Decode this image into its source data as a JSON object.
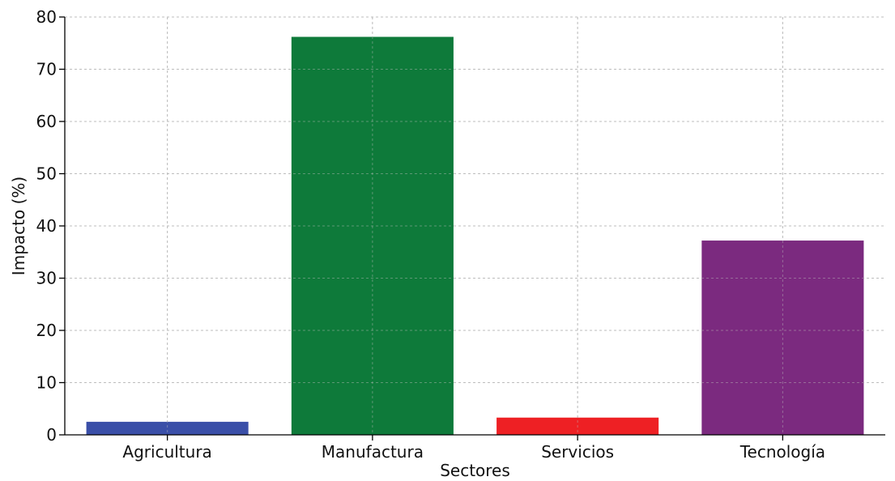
{
  "chart_data": {
    "type": "bar",
    "title": "",
    "xlabel": "Sectores",
    "ylabel": "Impacto (%)",
    "categories": [
      "Agricultura",
      "Manufactura",
      "Servicios",
      "Tecnología"
    ],
    "values": [
      2.5,
      76.2,
      3.3,
      37.2
    ],
    "colors": [
      "#3a4fa8",
      "#0e7a3a",
      "#ee2024",
      "#7b2a7f"
    ],
    "ylim": [
      0,
      80
    ],
    "yticks": [
      0,
      10,
      20,
      30,
      40,
      50,
      60,
      70,
      80
    ],
    "grid": true
  }
}
